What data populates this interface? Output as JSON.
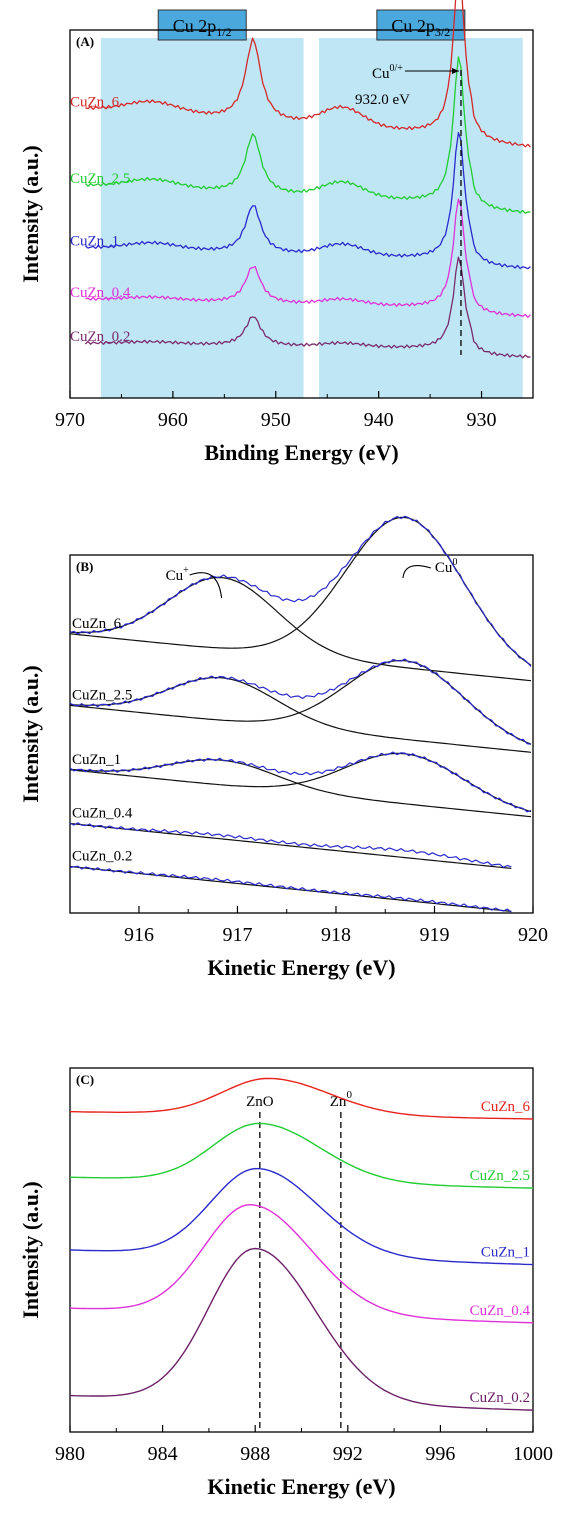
{
  "chart_data": [
    {
      "type": "line",
      "panel_label": "(A)",
      "xlabel": "Binding Energy (eV)",
      "ylabel": "Intensity (a.u.)",
      "xlim": [
        970,
        925
      ],
      "x_reversed": true,
      "xticks": [
        "970",
        "960",
        "950",
        "940",
        "930"
      ],
      "regions": [
        {
          "label_main": "Cu 2p",
          "label_sub": "1/2",
          "x_from": 967,
          "x_to": 947.3,
          "color": "#bfe6f5",
          "label_color": "#4aa8dc"
        },
        {
          "label_main": "Cu 2p",
          "label_sub": "3/2",
          "x_from": 945.8,
          "x_to": 926,
          "color": "#bfe6f5",
          "label_color": "#4aa8dc"
        }
      ],
      "annotation": {
        "line1_main": "Cu",
        "line1_sup": "0/+",
        "line2": "932.0 eV",
        "x": 932.0
      },
      "series": [
        {
          "name": "CuZn_6",
          "color": "#d62728",
          "offset": 0.7,
          "slope": 0.09,
          "satellite": 0.05,
          "peak_main": 0.46,
          "peak_side": 0.22
        },
        {
          "name": "CuZn_2.5",
          "color": "#22cc33",
          "offset": 0.52,
          "slope": 0.06,
          "satellite": 0.04,
          "peak_main": 0.4,
          "peak_side": 0.16
        },
        {
          "name": "CuZn_1",
          "color": "#2a2acc",
          "offset": 0.37,
          "slope": 0.04,
          "satellite": 0.03,
          "peak_main": 0.35,
          "peak_side": 0.13
        },
        {
          "name": "CuZn_0.4",
          "color": "#e030d8",
          "offset": 0.24,
          "slope": 0.03,
          "satellite": 0.015,
          "peak_main": 0.3,
          "peak_side": 0.1
        },
        {
          "name": "CuZn_0.2",
          "color": "#7a2a6e",
          "offset": 0.13,
          "slope": 0.02,
          "satellite": 0.01,
          "peak_main": 0.25,
          "peak_side": 0.08
        }
      ]
    },
    {
      "type": "line",
      "panel_label": "(B)",
      "xlabel": "Kinetic Energy (eV)",
      "ylabel": "Intensity (a.u.)",
      "xlim": [
        915.3,
        920
      ],
      "xticks": [
        "916",
        "917",
        "918",
        "919",
        "920"
      ],
      "peak_labels": [
        {
          "main": "Cu",
          "sup": "+",
          "x": 916.9
        },
        {
          "main": "Cu",
          "sup": "0",
          "x": 918.7
        }
      ],
      "series": [
        {
          "name": "CuZn_6",
          "cu_plus": 0.2,
          "cu0": 0.42,
          "base": 0.78
        },
        {
          "name": "CuZn_2.5",
          "cu_plus": 0.12,
          "cu0": 0.22,
          "base": 0.58
        },
        {
          "name": "CuZn_1",
          "cu_plus": 0.07,
          "cu0": 0.14,
          "base": 0.4
        },
        {
          "name": "CuZn_0.4",
          "cu_plus": 0.01,
          "cu0": 0.02,
          "base": 0.25
        },
        {
          "name": "CuZn_0.2",
          "cu_plus": 0.005,
          "cu0": 0.005,
          "base": 0.13
        }
      ],
      "data_color": "#2a2acc",
      "fit_color": "#111111"
    },
    {
      "type": "line",
      "panel_label": "(C)",
      "xlabel": "Kinetic Energy (eV)",
      "ylabel": "Intensity (a.u.)",
      "xlim": [
        980,
        1000
      ],
      "xticks": [
        "980",
        "984",
        "988",
        "992",
        "996",
        "1000"
      ],
      "reference_lines": [
        {
          "main": "ZnO",
          "sup": "",
          "x": 988.2
        },
        {
          "main": "Zn",
          "sup": "0",
          "x": 991.7
        }
      ],
      "series": [
        {
          "name": "CuZn_6",
          "color": "#e8231e",
          "offset": 0.88,
          "amp": 0.1,
          "center": 988.6,
          "tail": 0.02
        },
        {
          "name": "CuZn_2.5",
          "color": "#22cc33",
          "offset": 0.7,
          "amp": 0.16,
          "center": 988.2,
          "tail": 0.03
        },
        {
          "name": "CuZn_1",
          "color": "#2a2acc",
          "offset": 0.5,
          "amp": 0.24,
          "center": 988.1,
          "tail": 0.04
        },
        {
          "name": "CuZn_0.4",
          "color": "#e030d8",
          "offset": 0.34,
          "amp": 0.3,
          "center": 987.8,
          "tail": 0.04
        },
        {
          "name": "CuZn_0.2",
          "color": "#6d2068",
          "offset": 0.1,
          "amp": 0.42,
          "center": 988.0,
          "tail": 0.04
        }
      ]
    }
  ]
}
